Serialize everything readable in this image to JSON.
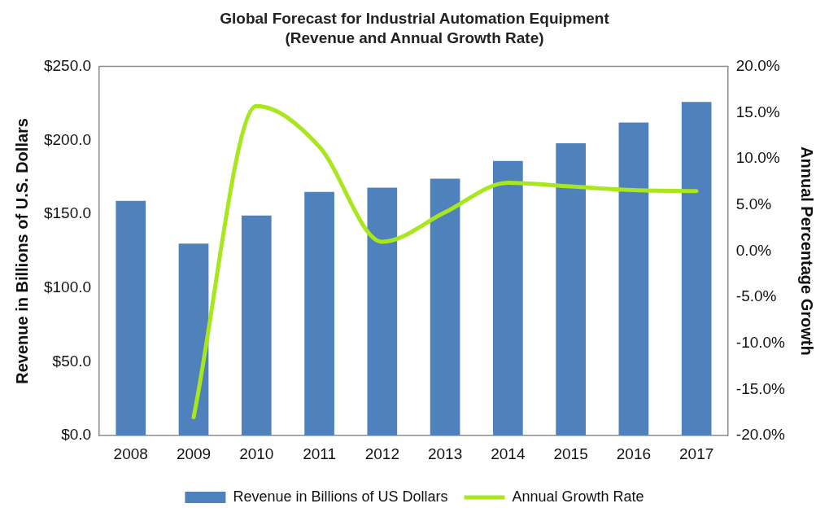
{
  "chart_data": {
    "type": "bar",
    "title": "Global Forecast for Industrial Automation Equipment",
    "subtitle": "(Revenue and Annual Growth Rate)",
    "ylabel": "Revenue in Billions of U.S. Dollars",
    "y2label": "Annual Percentage Growth",
    "categories": [
      "2008",
      "2009",
      "2010",
      "2011",
      "2012",
      "2013",
      "2014",
      "2015",
      "2016",
      "2017"
    ],
    "series": [
      {
        "name": "Revenue in Billions of US Dollars",
        "color": "#4f81bd",
        "values": [
          159,
          130,
          149,
          165,
          168,
          174,
          186,
          198,
          212,
          226
        ]
      },
      {
        "name": "Annual Growth Rate",
        "type": "line",
        "axis": "y2",
        "color": "#a8e61d",
        "marker": "none",
        "values": [
          null,
          -18.0,
          15.7,
          11.3,
          1.0,
          4.2,
          7.4,
          7.0,
          6.6,
          6.5
        ]
      }
    ],
    "ylim": [
      0,
      250
    ],
    "yticks": [
      {
        "value": 0,
        "label": "$0.0"
      },
      {
        "value": 50,
        "label": "$50.0"
      },
      {
        "value": 100,
        "label": "$100.0"
      },
      {
        "value": 150,
        "label": "$150.0"
      },
      {
        "value": 200,
        "label": "$200.0"
      },
      {
        "value": 250,
        "label": "$250.0"
      }
    ],
    "y2lim": [
      -20,
      20
    ],
    "y2ticks": [
      {
        "value": -20,
        "label": "-20.0%"
      },
      {
        "value": -15,
        "label": "-15.0%"
      },
      {
        "value": -10,
        "label": "-10.0%"
      },
      {
        "value": -5,
        "label": "-5.0%"
      },
      {
        "value": 0,
        "label": "0.0%"
      },
      {
        "value": 5,
        "label": "5.0%"
      },
      {
        "value": 10,
        "label": "10.0%"
      },
      {
        "value": 15,
        "label": "15.0%"
      },
      {
        "value": 20,
        "label": "20.0%"
      }
    ],
    "grid": false,
    "legend": "bottom"
  }
}
